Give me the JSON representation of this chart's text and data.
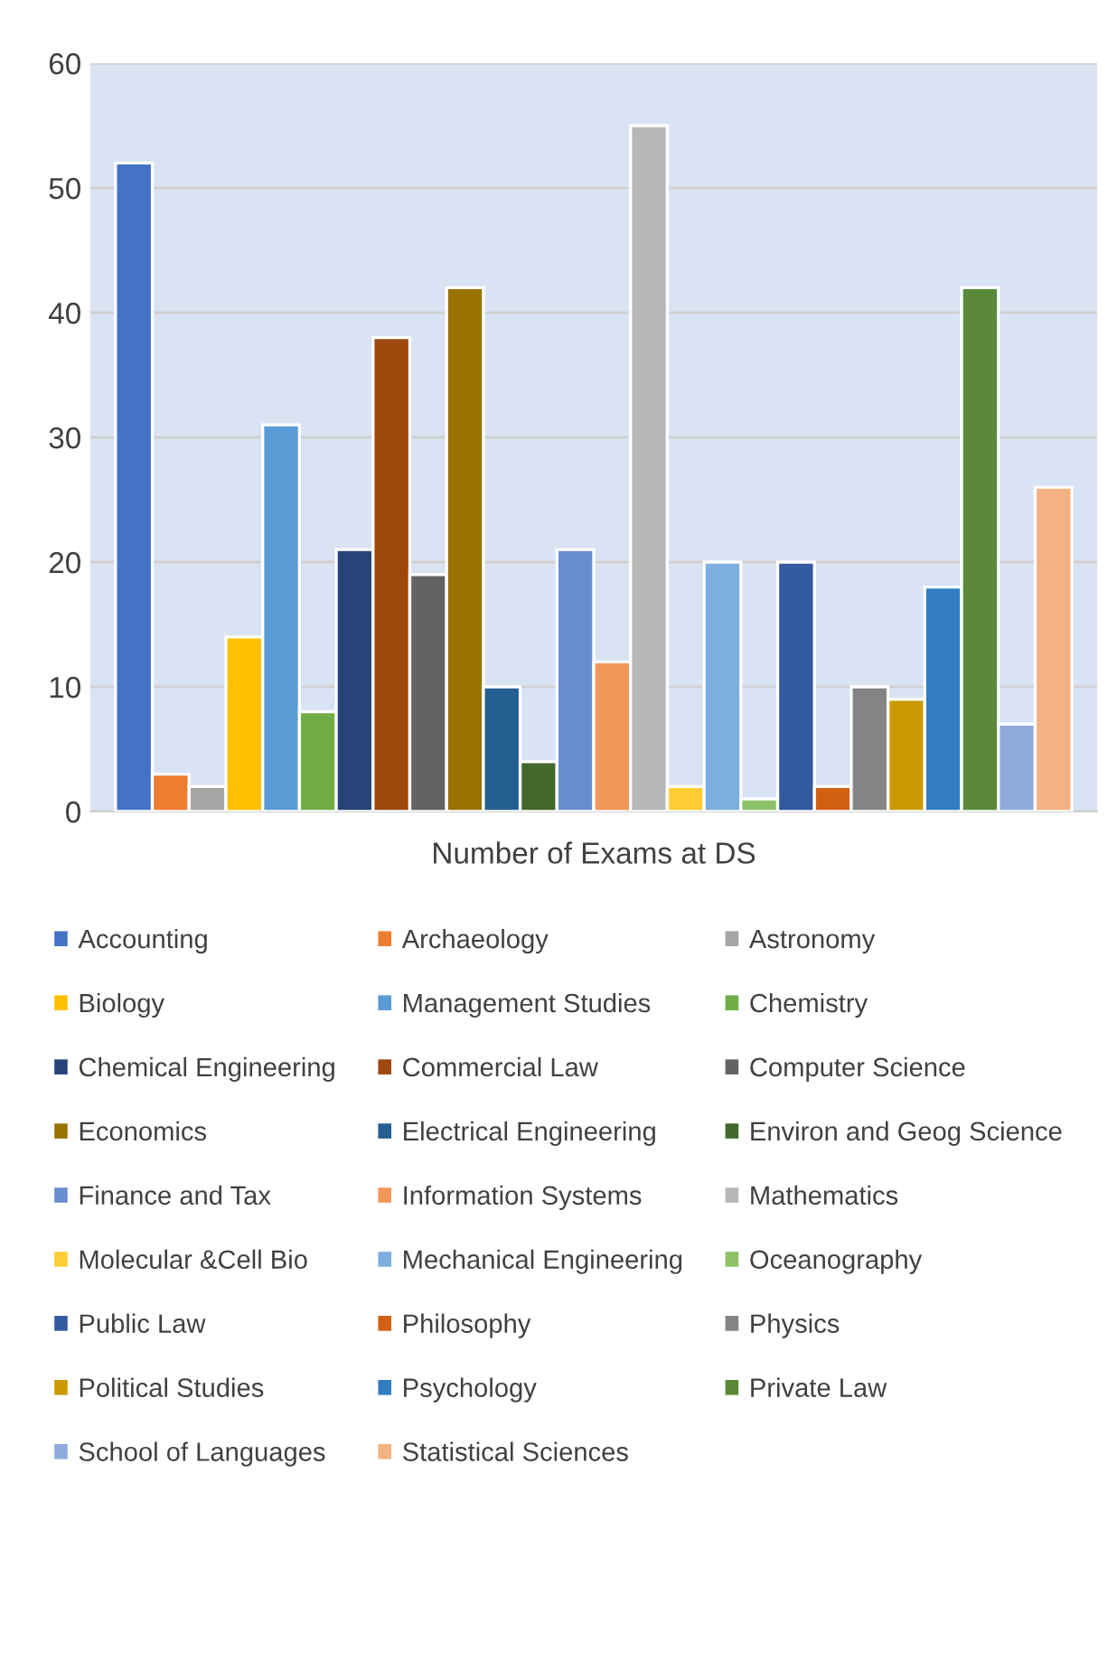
{
  "chart_data": {
    "type": "bar",
    "categories": [
      "Number of Exams at DS"
    ],
    "series": [
      {
        "name": "Accounting",
        "color": "#4472c4",
        "values": [
          52
        ]
      },
      {
        "name": "Archaeology",
        "color": "#ed7d31",
        "values": [
          3
        ]
      },
      {
        "name": "Astronomy",
        "color": "#a5a5a5",
        "values": [
          2
        ]
      },
      {
        "name": "Biology",
        "color": "#ffc000",
        "values": [
          14
        ]
      },
      {
        "name": "Management Studies",
        "color": "#5b9bd5",
        "values": [
          31
        ]
      },
      {
        "name": "Chemistry",
        "color": "#70ad47",
        "values": [
          8
        ]
      },
      {
        "name": "Chemical Engineering",
        "color": "#264478",
        "values": [
          21
        ]
      },
      {
        "name": "Commercial Law",
        "color": "#9e480e",
        "values": [
          38
        ]
      },
      {
        "name": "Computer Science",
        "color": "#636363",
        "values": [
          19
        ]
      },
      {
        "name": "Economics",
        "color": "#997300",
        "values": [
          42
        ]
      },
      {
        "name": "Electrical Engineering",
        "color": "#255e91",
        "values": [
          10
        ]
      },
      {
        "name": "Environ and Geog Science",
        "color": "#43682b",
        "values": [
          4
        ]
      },
      {
        "name": "Finance and Tax",
        "color": "#698ed0",
        "values": [
          21
        ]
      },
      {
        "name": "Information Systems",
        "color": "#f1975a",
        "values": [
          12
        ]
      },
      {
        "name": "Mathematics",
        "color": "#b7b7b7",
        "values": [
          55
        ]
      },
      {
        "name": "Molecular &Cell Bio",
        "color": "#ffcd33",
        "values": [
          2
        ]
      },
      {
        "name": "Mechanical Engineering",
        "color": "#7cafdd",
        "values": [
          20
        ]
      },
      {
        "name": "Oceanography",
        "color": "#8cc168",
        "values": [
          1
        ]
      },
      {
        "name": "Public Law",
        "color": "#335aa1",
        "values": [
          20
        ]
      },
      {
        "name": "Philosophy",
        "color": "#d26012",
        "values": [
          2
        ]
      },
      {
        "name": "Physics",
        "color": "#848484",
        "values": [
          10
        ]
      },
      {
        "name": "Political Studies",
        "color": "#cc9a00",
        "values": [
          9
        ]
      },
      {
        "name": "Psychology",
        "color": "#327dc2",
        "values": [
          18
        ]
      },
      {
        "name": "Private Law",
        "color": "#5a8a39",
        "values": [
          42
        ]
      },
      {
        "name": "School of Languages",
        "color": "#8faadc",
        "values": [
          7
        ]
      },
      {
        "name": "Statistical Sciences",
        "color": "#f4b183",
        "values": [
          26
        ]
      }
    ],
    "ylim": [
      0,
      60
    ],
    "yticks": [
      0,
      10,
      20,
      30,
      40,
      50,
      60
    ],
    "grid": "y",
    "legend": "bottom"
  }
}
